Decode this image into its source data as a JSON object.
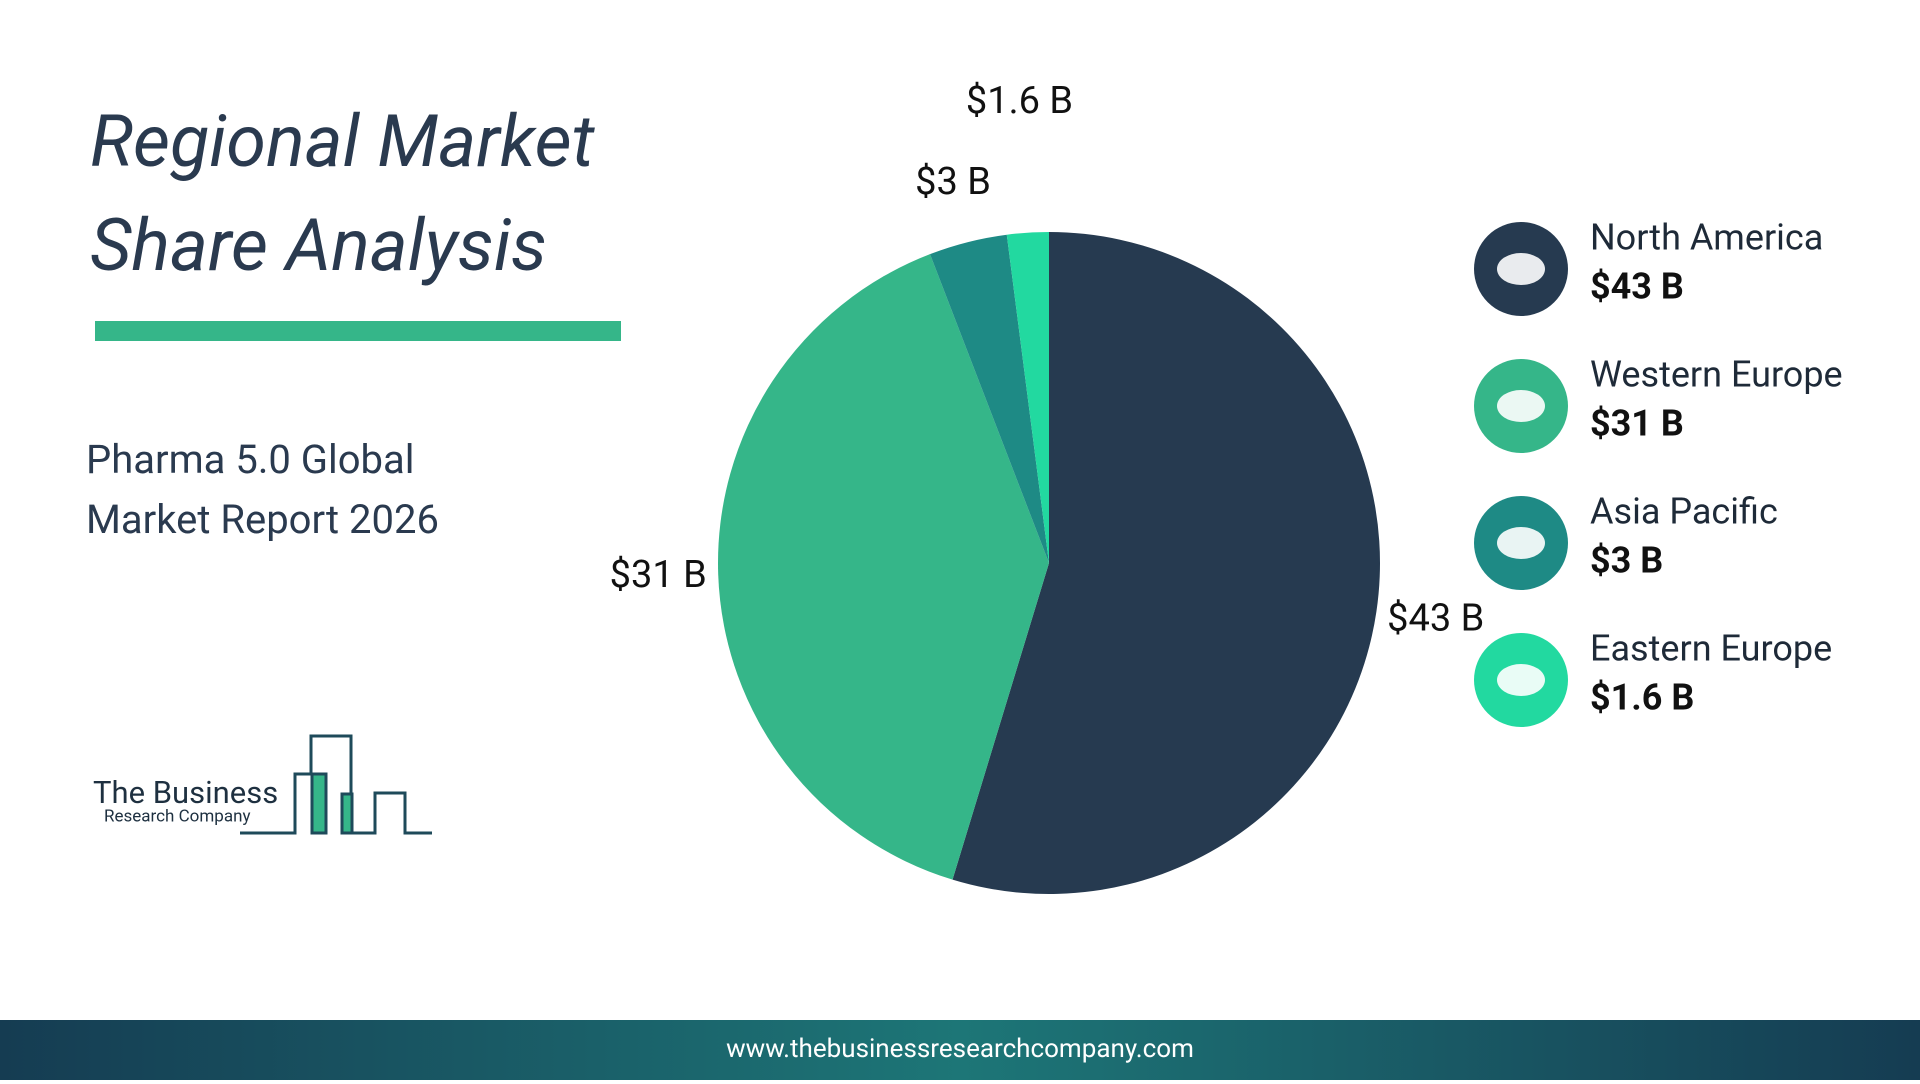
{
  "chart_data": {
    "type": "pie",
    "title": "Regional Market Share Analysis",
    "subtitle": "Pharma 5.0 Global Market Report 2026",
    "categories": [
      "North America",
      "Western Europe",
      "Asia Pacific",
      "Eastern Europe"
    ],
    "values": [
      43,
      31,
      3,
      1.6
    ],
    "value_labels": [
      "$43 B",
      "$31 B",
      "$3 B",
      "$1.6 B"
    ],
    "colors": [
      "#263a50",
      "#35b689",
      "#1e8a85",
      "#22d9a0"
    ],
    "legend": "right"
  },
  "logo": {
    "line1": "The Business",
    "line2": "Research Company"
  },
  "footer": {
    "url": "www.thebusinessresearchcompany.com"
  }
}
